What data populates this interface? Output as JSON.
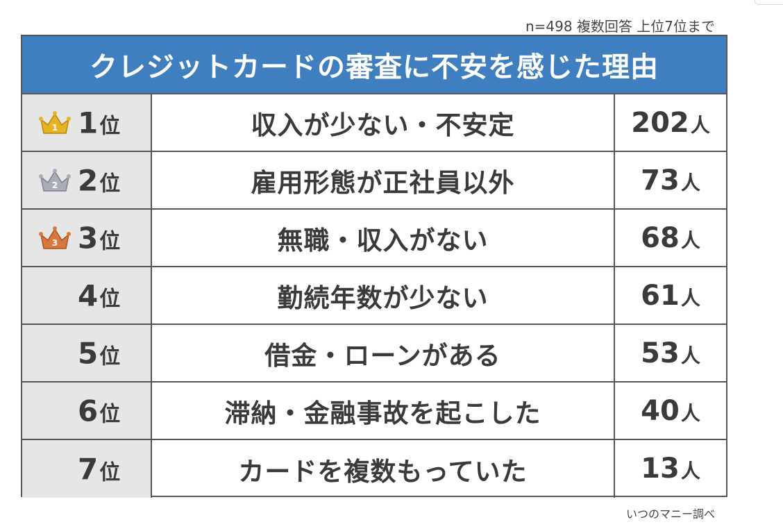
{
  "note": "n=498 複数回答 上位7位まで",
  "source": "いつのマニー調べ",
  "rank_suffix": "位",
  "count_unit": "人",
  "colors": {
    "header_bg": "#3f7fc0",
    "rank_cell_bg": "#e6e6e6",
    "gold": "#e6b422",
    "silver": "#a9adb8",
    "bronze": "#d9783a"
  },
  "chart_data": {
    "type": "table",
    "title": "クレジットカードの審査に不安を感じた理由",
    "note": "n=498 複数回答 上位7位まで",
    "source": "いつのマニー調べ",
    "unit": "人",
    "rows": [
      {
        "rank": "1",
        "reason": "収入が少ない・不安定",
        "count": "202",
        "value": 202,
        "crown": "gold-crown-icon",
        "crown_label": "1"
      },
      {
        "rank": "2",
        "reason": "雇用形態が正社員以外",
        "count": "73",
        "value": 73,
        "crown": "silver-crown-icon",
        "crown_label": "2"
      },
      {
        "rank": "3",
        "reason": "無職・収入がない",
        "count": "68",
        "value": 68,
        "crown": "bronze-crown-icon",
        "crown_label": "3"
      },
      {
        "rank": "4",
        "reason": "勤続年数が少ない",
        "count": "61",
        "value": 61
      },
      {
        "rank": "5",
        "reason": "借金・ローンがある",
        "count": "53",
        "value": 53
      },
      {
        "rank": "6",
        "reason": "滞納・金融事故を起こした",
        "count": "40",
        "value": 40
      },
      {
        "rank": "7",
        "reason": "カードを複数もっていた",
        "count": "13",
        "value": 13
      }
    ]
  }
}
